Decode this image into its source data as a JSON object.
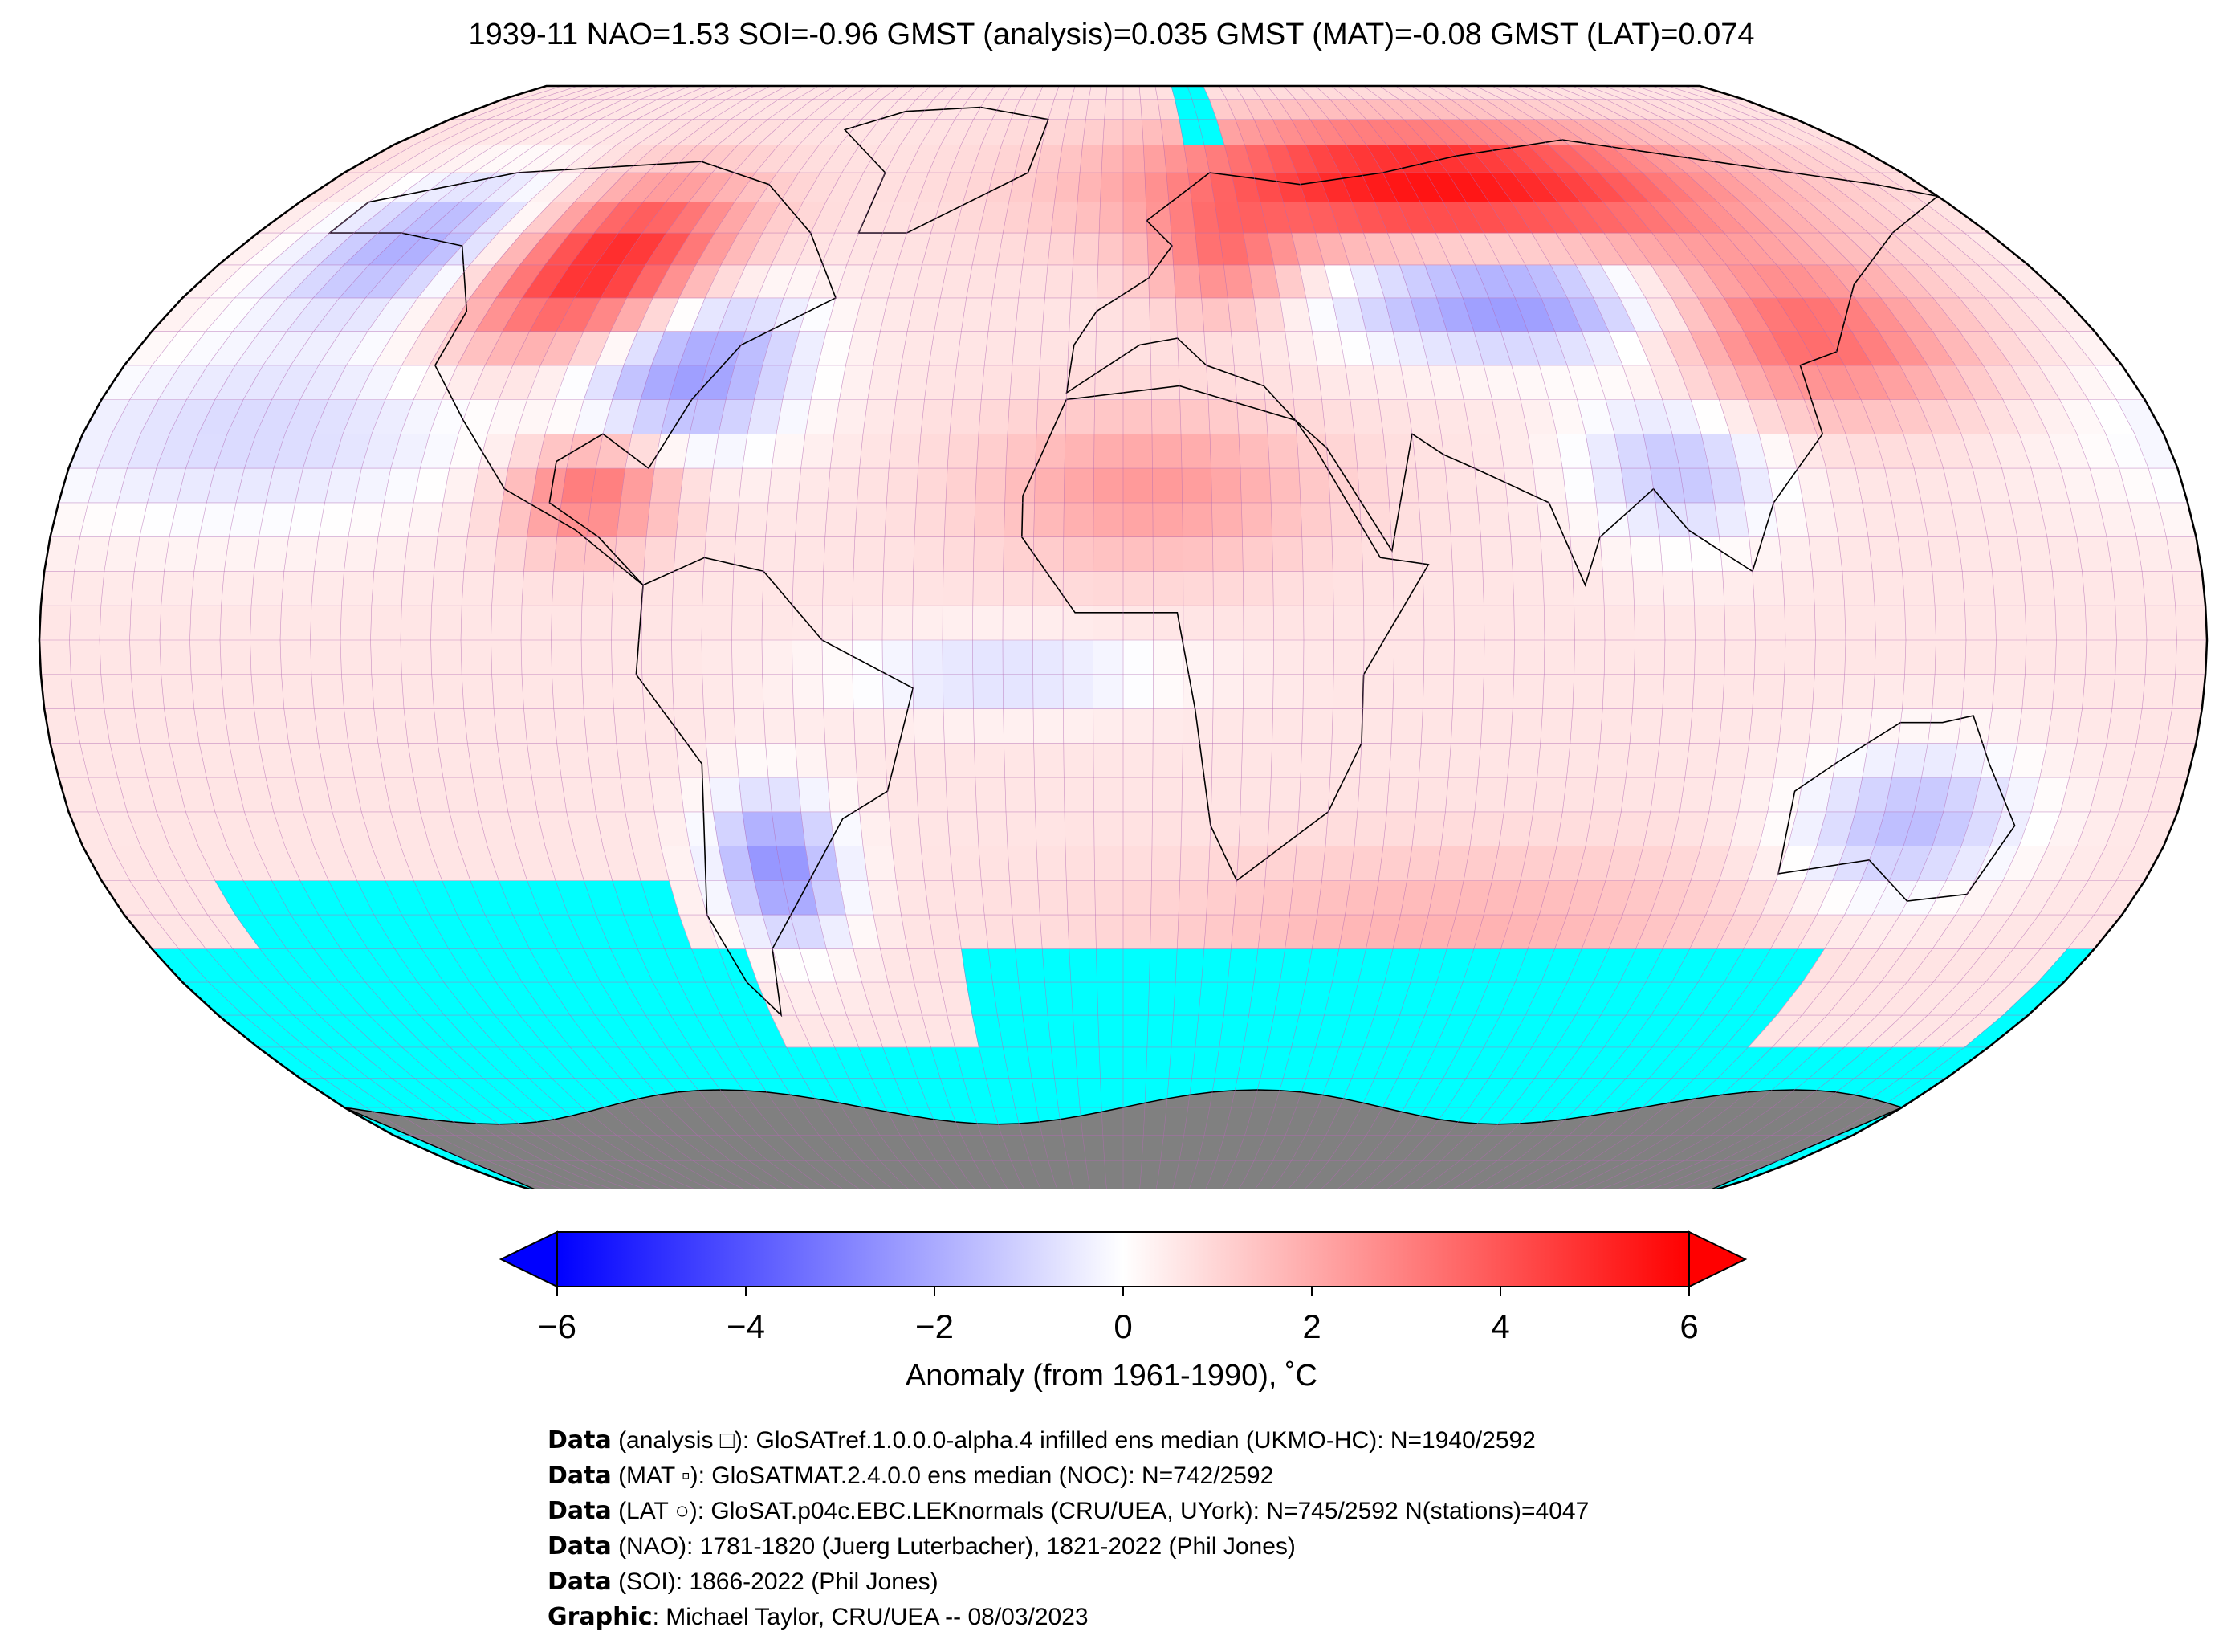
{
  "title": "1939-11 NAO=1.53 SOI=-0.96 GMST (analysis)=0.035 GMST (MAT)=-0.08 GMST (LAT)=0.074",
  "map": {
    "projection": "Robinson",
    "grid_resolution_deg": 5,
    "colors": {
      "missing": "#00ffff",
      "land_antarctica": "#808080",
      "gridline": "#b36bb3",
      "coast": "#000000"
    },
    "anomaly_regions": [
      {
        "region": "Alaska / NE Pacific",
        "anomaly_c": -2.5
      },
      {
        "region": "Western Canada / NW USA",
        "anomaly_c": 4.5
      },
      {
        "region": "Eastern USA",
        "anomaly_c": -2.5
      },
      {
        "region": "Gulf of Mexico",
        "anomaly_c": 2.5
      },
      {
        "region": "Northern Eurasia / Siberia",
        "anomaly_c": 4.5
      },
      {
        "region": "Central Asia",
        "anomaly_c": -3.0
      },
      {
        "region": "East Asia",
        "anomaly_c": 3.0
      },
      {
        "region": "North Africa / Sahara",
        "anomaly_c": 1.5
      },
      {
        "region": "Southern South America",
        "anomaly_c": -3.0
      },
      {
        "region": "Australia",
        "anomaly_c": -2.0
      },
      {
        "region": "Southern Ocean",
        "anomaly_c": 1.0
      }
    ]
  },
  "colorbar": {
    "min": -6,
    "max": 6,
    "ticks": [
      "−6",
      "−4",
      "−2",
      "0",
      "2",
      "4",
      "6"
    ],
    "tick_values": [
      -6,
      -4,
      -2,
      0,
      2,
      4,
      6
    ],
    "extend": "both",
    "cmap": "bwr",
    "colors": {
      "low": "#0000ff",
      "mid": "#ffffff",
      "high": "#ff0000"
    },
    "label": "Anomaly (from 1961-1990), ˚C"
  },
  "credits": [
    {
      "bold": "Data",
      "text": " (analysis □): GloSATref.1.0.0.0-alpha.4 infilled ens median (UKMO-HC): N=1940/2592"
    },
    {
      "bold": "Data",
      "text": " (MAT ▫): GloSATMAT.2.4.0.0 ens median (NOC): N=742/2592"
    },
    {
      "bold": "Data",
      "text": " (LAT ○): GloSAT.p04c.EBC.LEKnormals (CRU/UEA, UYork): N=745/2592 N(stations)=4047"
    },
    {
      "bold": "Data",
      "text": " (NAO): 1781-1820 (Juerg Luterbacher), 1821-2022 (Phil Jones)"
    },
    {
      "bold": "Data",
      "text": " (SOI): 1866-2022 (Phil Jones)"
    },
    {
      "bold": "Graphic",
      "text": ": Michael Taylor, CRU/UEA -- 08/03/2023"
    }
  ]
}
